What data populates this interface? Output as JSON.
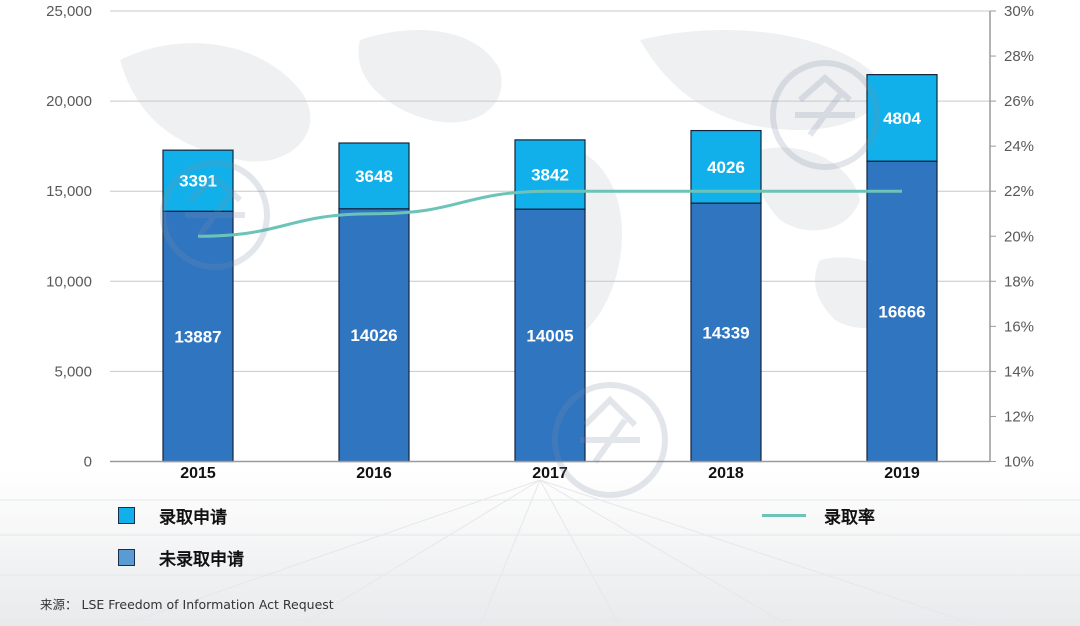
{
  "colors": {
    "admitted": "#11b0ea",
    "not_admitted": "#2f75c0",
    "rate": "#6cc4b8",
    "legend_not_admitted": "#5b9bd5"
  },
  "chart_data": {
    "type": "bar",
    "stacked": true,
    "categories": [
      "2015",
      "2016",
      "2017",
      "2018",
      "2019"
    ],
    "series": [
      {
        "name": "未录取申请",
        "values": [
          13887,
          14026,
          14005,
          14339,
          16666
        ]
      },
      {
        "name": "录取申请",
        "values": [
          3391,
          3648,
          3842,
          4026,
          4804
        ]
      }
    ],
    "line_series": {
      "name": "录取率",
      "axis": "right",
      "values": [
        0.2,
        0.21,
        0.22,
        0.22,
        0.22
      ]
    },
    "ylim": [
      0,
      25000
    ],
    "yticks": [
      "0",
      "5,000",
      "10,000",
      "15,000",
      "20,000",
      "25,000"
    ],
    "y2lim": [
      0.1,
      0.3
    ],
    "y2ticks": [
      "10%",
      "12%",
      "14%",
      "16%",
      "18%",
      "20%",
      "22%",
      "24%",
      "26%",
      "28%",
      "30%"
    ],
    "legend_position": "bottom"
  },
  "legend": {
    "admitted": "录取申请",
    "not_admitted": "未录取申请",
    "rate": "录取率"
  },
  "source": "来源：  LSE Freedom of Information Act Request"
}
